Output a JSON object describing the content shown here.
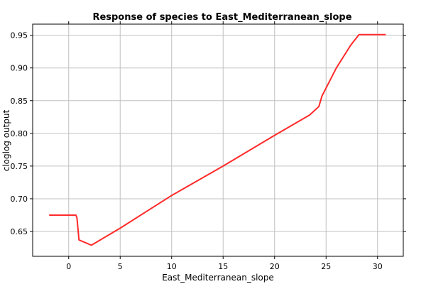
{
  "chart_data": {
    "type": "line",
    "title": "Response of species to East_Mediterranean_slope",
    "xlabel": "East_Mediterranean_slope",
    "ylabel": "cloglog output",
    "xlim": [
      -3.5,
      32.5
    ],
    "ylim": [
      0.612,
      0.967
    ],
    "x_ticks": [
      0,
      5,
      10,
      15,
      20,
      25,
      30
    ],
    "y_ticks": [
      0.65,
      0.7,
      0.75,
      0.8,
      0.85,
      0.9,
      0.95
    ],
    "x_tick_labels": [
      "0",
      "5",
      "10",
      "15",
      "20",
      "25",
      "30"
    ],
    "y_tick_labels": [
      "0.65",
      "0.70",
      "0.75",
      "0.80",
      "0.85",
      "0.90",
      "0.95"
    ],
    "grid": true,
    "series": [
      {
        "color": "#ff2a2a",
        "x": [
          -1.9,
          0.7,
          0.8,
          1.0,
          2.2,
          5.0,
          10.0,
          15.0,
          20.0,
          23.4,
          24.3,
          24.6,
          26.0,
          27.4,
          28.2,
          30.8
        ],
        "y": [
          0.675,
          0.675,
          0.671,
          0.637,
          0.629,
          0.655,
          0.705,
          0.75,
          0.797,
          0.828,
          0.841,
          0.857,
          0.9,
          0.935,
          0.951,
          0.951
        ]
      }
    ]
  }
}
